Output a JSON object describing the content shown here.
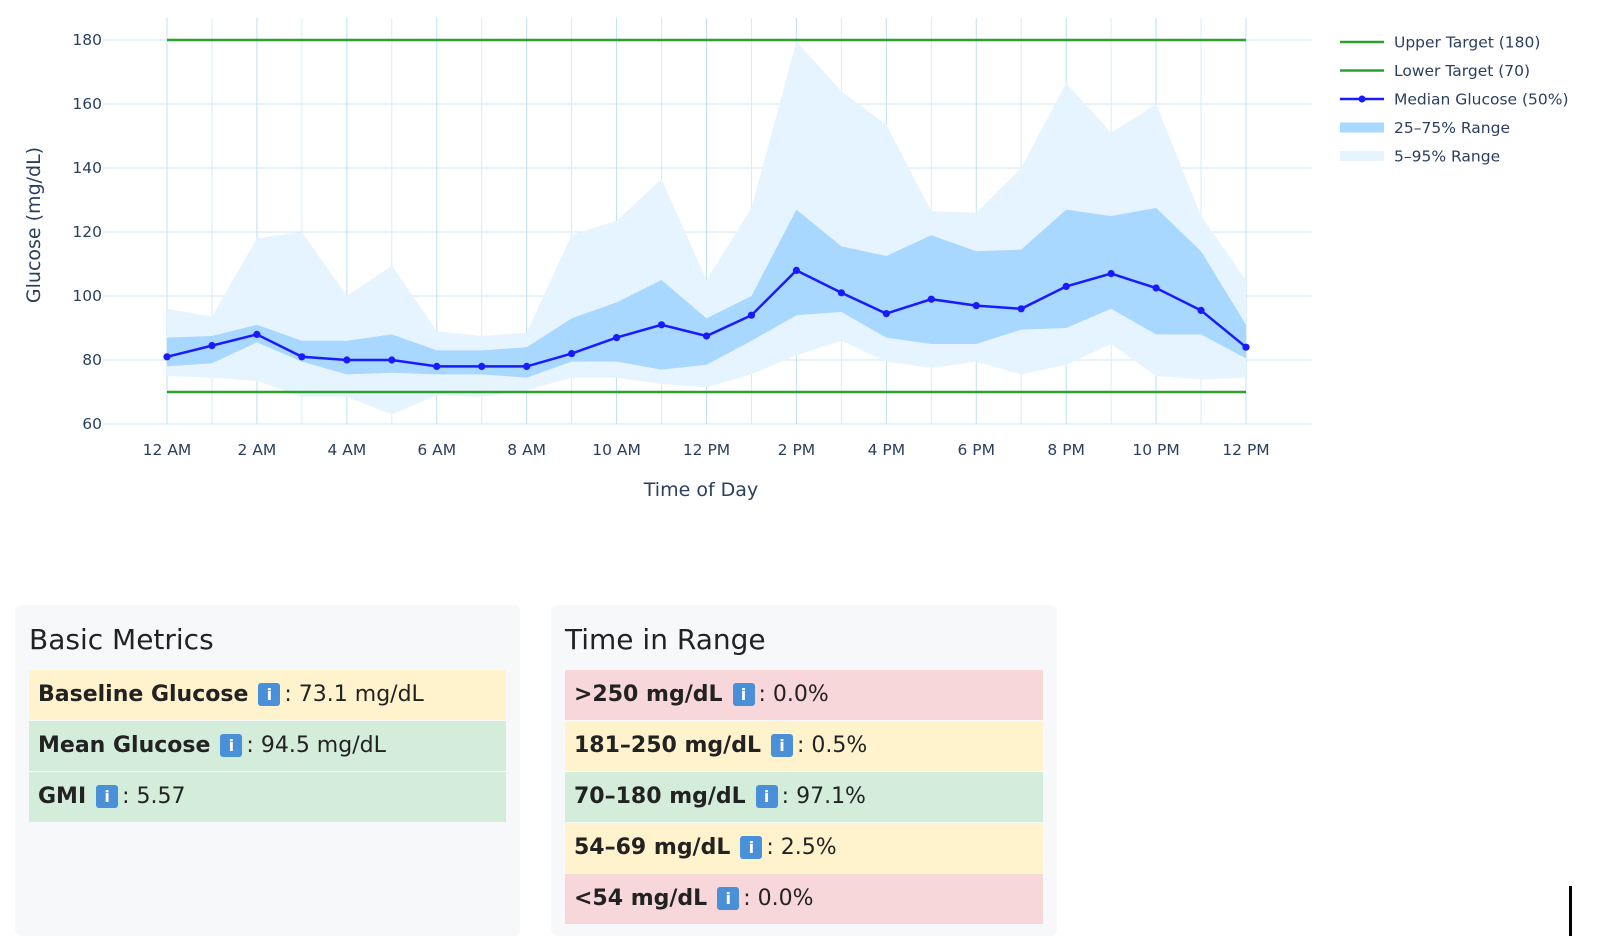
{
  "chart_data": {
    "type": "area",
    "xlabel": "Time of Day",
    "ylabel": "Glucose (mg/dL)",
    "ylim": [
      60,
      180
    ],
    "grid": true,
    "legend_position": "top-right",
    "x_tick_labels": [
      "12 AM",
      "2 AM",
      "4 AM",
      "6 AM",
      "8 AM",
      "10 AM",
      "12 PM",
      "2 PM",
      "4 PM",
      "6 PM",
      "8 PM",
      "10 PM",
      "12 PM"
    ],
    "y_ticks": [
      60,
      80,
      100,
      120,
      140,
      160,
      180
    ],
    "x_hours": [
      0,
      1,
      2,
      3,
      4,
      5,
      6,
      7,
      8,
      9,
      10,
      11,
      12,
      13,
      14,
      15,
      16,
      17,
      18,
      19,
      20,
      21,
      22,
      23,
      24
    ],
    "series": [
      {
        "name": "Upper Target (180)",
        "kind": "line",
        "color": "#2ca02c",
        "values": [
          180,
          180
        ]
      },
      {
        "name": "Lower Target (70)",
        "kind": "line",
        "color": "#2ca02c",
        "values": [
          70,
          70
        ]
      },
      {
        "name": "Median Glucose (50%)",
        "kind": "line_markers",
        "color": "#1a1aff",
        "values": [
          81,
          84.5,
          88,
          81,
          80,
          80,
          78,
          78,
          78,
          82,
          87,
          91,
          87.5,
          94,
          108,
          101,
          94.5,
          99,
          97,
          96,
          103,
          107,
          102.5,
          95.5,
          84
        ]
      },
      {
        "name": "25–75% Range",
        "kind": "band",
        "color": "#a8d8ff",
        "lower": [
          78,
          79,
          85.5,
          79.5,
          75.5,
          76,
          75.5,
          75.5,
          74.5,
          79.5,
          79.5,
          77,
          78.5,
          86,
          94,
          95,
          87,
          85,
          85,
          89.5,
          90,
          96,
          88,
          88,
          80.5
        ],
        "upper": [
          87,
          87.5,
          91,
          86,
          86,
          88,
          83,
          83,
          84,
          93,
          98,
          105,
          93,
          100,
          127,
          115.5,
          112.5,
          119,
          114,
          114.5,
          127,
          125,
          127.5,
          114,
          91
        ]
      },
      {
        "name": "5–95% Range",
        "kind": "band",
        "color": "#e6f4ff",
        "lower": [
          75,
          74.5,
          73.5,
          68.5,
          68.5,
          63,
          69,
          68.5,
          70.5,
          74.5,
          74.5,
          72.5,
          71.5,
          75.5,
          81.5,
          86,
          79.5,
          77.5,
          79.5,
          75.5,
          78.5,
          85,
          75,
          74,
          74.5
        ],
        "upper": [
          96,
          93.5,
          118,
          120,
          100,
          109.5,
          89,
          87.5,
          88.5,
          119,
          123.5,
          136.5,
          105,
          127.5,
          179.5,
          164,
          153.5,
          126.5,
          126,
          140,
          166.5,
          151,
          160,
          125,
          105
        ]
      }
    ]
  },
  "basic_metrics": {
    "title": "Basic Metrics",
    "items": [
      {
        "label": "Baseline Glucose",
        "value": ": 73.1 mg/dL",
        "color": "#fff3cd"
      },
      {
        "label": "Mean Glucose",
        "value": ": 94.5 mg/dL",
        "color": "#d4edda"
      },
      {
        "label": "GMI",
        "value": ": 5.57",
        "color": "#d4edda"
      }
    ]
  },
  "time_in_range": {
    "title": "Time in Range",
    "items": [
      {
        "label": ">250 mg/dL",
        "value": ": 0.0%",
        "color": "#f8d7da"
      },
      {
        "label": "181–250 mg/dL",
        "value": ": 0.5%",
        "color": "#fff3cd"
      },
      {
        "label": "70–180 mg/dL",
        "value": ": 97.1%",
        "color": "#d4edda"
      },
      {
        "label": "54–69 mg/dL",
        "value": ": 2.5%",
        "color": "#fff3cd"
      },
      {
        "label": "<54 mg/dL",
        "value": ": 0.0%",
        "color": "#f8d7da"
      }
    ]
  },
  "info_icon_glyph": "i"
}
